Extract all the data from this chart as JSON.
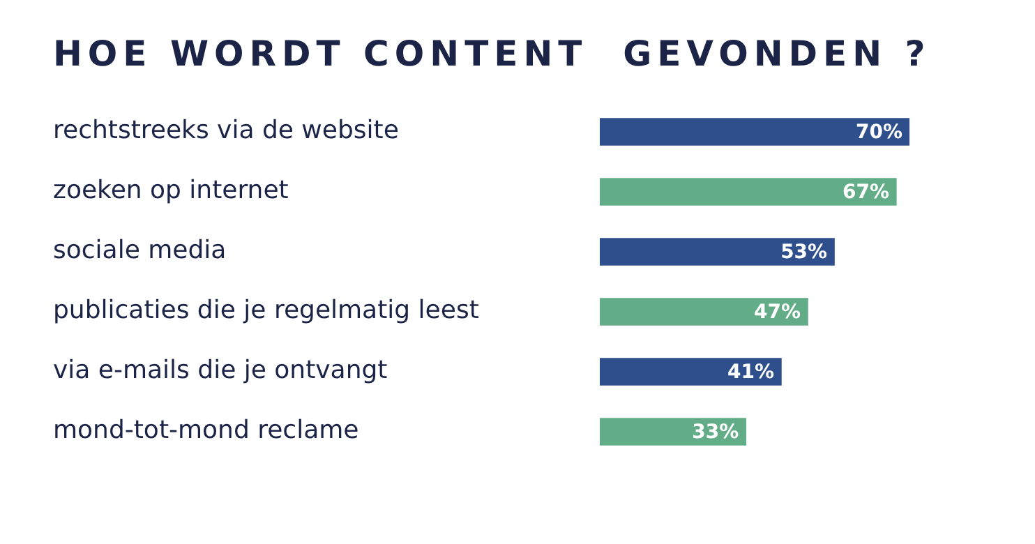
{
  "chart_data": {
    "type": "bar",
    "orientation": "horizontal",
    "title": "HOE WORDT CONTENT  GEVONDEN ?",
    "categories": [
      "rechtstreeks via de website",
      "zoeken op internet",
      "sociale media",
      "publicaties die je regelmatig leest",
      "via e-mails die je ontvangt",
      "mond-tot-mond reclame"
    ],
    "values": [
      70,
      67,
      53,
      47,
      41,
      33
    ],
    "colors": [
      "#2e4f8c",
      "#62ad87",
      "#2e4f8c",
      "#62ad87",
      "#2e4f8c",
      "#62ad87"
    ],
    "value_labels": [
      "70%",
      "67%",
      "53%",
      "47%",
      "41%",
      "33%"
    ],
    "grid": false,
    "legend": false
  }
}
